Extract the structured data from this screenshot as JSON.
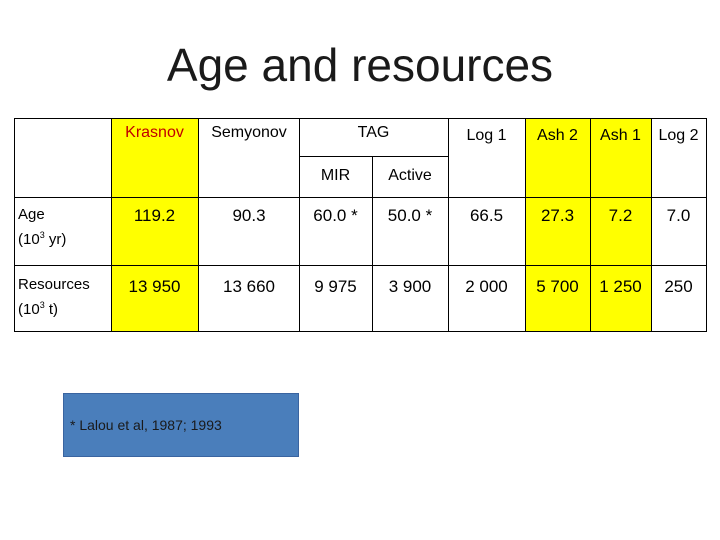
{
  "title": "Age and resources",
  "columns": {
    "krasnov": "Krasnov",
    "semyonov": "Semyonov",
    "tag": "TAG",
    "mir": "MIR",
    "active": "Active",
    "log1": "Log 1",
    "ash2": "Ash 2",
    "ash1": "Ash 1",
    "log2": "Log 2"
  },
  "rows": {
    "age": {
      "label_line1": "Age",
      "label_line2_prefix": "(10",
      "label_line2_sup": "3",
      "label_line2_suffix": " yr)",
      "values": [
        "119.2",
        "90.3",
        "60.0 *",
        "50.0 *",
        "66.5",
        "27.3",
        "7.2",
        "7.0"
      ]
    },
    "resources": {
      "label_line1": "Resources",
      "label_line2_prefix": "(10",
      "label_line2_sup": "3",
      "label_line2_suffix": " t)",
      "values": [
        "13 950",
        "13 660",
        "9 975",
        "3 900",
        "2 000",
        "5 700",
        "1 250",
        "250"
      ]
    }
  },
  "highlight_color": "#ffff00",
  "footnote": "* Lalou et al, 1987; 1993",
  "footnote_bg": "#4a7ebb"
}
